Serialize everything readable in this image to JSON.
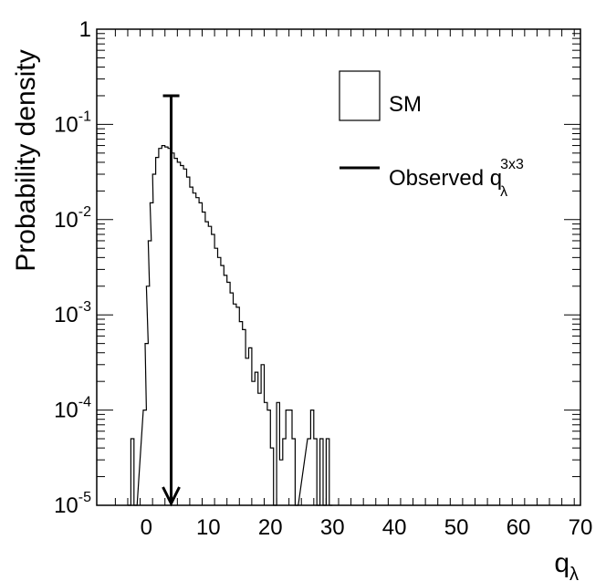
{
  "chart_data": {
    "type": "histogram",
    "title": "",
    "xlabel": "q",
    "xlabel_sub": "λ",
    "ylabel": "Probability density",
    "xlim": [
      -8,
      70
    ],
    "ylim": [
      1e-05,
      1
    ],
    "yscale": "log",
    "xticks": [
      0,
      10,
      20,
      30,
      40,
      50,
      60,
      70
    ],
    "xtick_labels": [
      "0",
      "10",
      "20",
      "30",
      "40",
      "50",
      "60",
      "70"
    ],
    "yticks": [
      {
        "value": 1e-05,
        "base": "10",
        "exp": "-5"
      },
      {
        "value": 0.0001,
        "base": "10",
        "exp": "-4"
      },
      {
        "value": 0.001,
        "base": "10",
        "exp": "-3"
      },
      {
        "value": 0.01,
        "base": "10",
        "exp": "-2"
      },
      {
        "value": 0.1,
        "base": "10",
        "exp": "-1"
      },
      {
        "value": 1,
        "base": "1",
        "exp": ""
      }
    ],
    "series": [
      {
        "name": "SM",
        "style": "step-histogram",
        "color": "#000000",
        "points": [
          [
            -3.0,
            1e-05
          ],
          [
            -2.5,
            5e-05
          ],
          [
            -2.0,
            1e-05
          ],
          [
            -0.5,
            0.0001
          ],
          [
            -0.2,
            0.0005
          ],
          [
            0.0,
            0.002
          ],
          [
            0.3,
            0.006
          ],
          [
            0.6,
            0.015
          ],
          [
            1.0,
            0.03
          ],
          [
            1.5,
            0.045
          ],
          [
            2.0,
            0.056
          ],
          [
            2.5,
            0.06
          ],
          [
            3.0,
            0.058
          ],
          [
            3.5,
            0.056
          ],
          [
            4.0,
            0.05
          ],
          [
            4.5,
            0.044
          ],
          [
            5.0,
            0.04
          ],
          [
            5.5,
            0.037
          ],
          [
            6.0,
            0.034
          ],
          [
            6.5,
            0.028
          ],
          [
            7.0,
            0.022
          ],
          [
            7.5,
            0.019
          ],
          [
            8.0,
            0.017
          ],
          [
            8.5,
            0.015
          ],
          [
            9.0,
            0.012
          ],
          [
            9.5,
            0.0095
          ],
          [
            10.0,
            0.0085
          ],
          [
            10.5,
            0.007
          ],
          [
            11.0,
            0.005
          ],
          [
            11.5,
            0.004
          ],
          [
            12.0,
            0.0033
          ],
          [
            12.5,
            0.0026
          ],
          [
            13.0,
            0.0022
          ],
          [
            13.5,
            0.0017
          ],
          [
            14.0,
            0.0013
          ],
          [
            14.5,
            0.0012
          ],
          [
            15.0,
            0.00085
          ],
          [
            15.5,
            0.0007
          ],
          [
            16.0,
            0.00035
          ],
          [
            16.5,
            0.00045
          ],
          [
            17.0,
            0.0002
          ],
          [
            17.5,
            0.00025
          ],
          [
            18.0,
            0.00015
          ],
          [
            18.5,
            0.0003
          ],
          [
            19.0,
            0.00012
          ],
          [
            19.5,
            0.0001
          ],
          [
            20.0,
            4e-05
          ],
          [
            20.5,
            1e-05
          ],
          [
            21.0,
            0.00012
          ],
          [
            21.5,
            3e-05
          ],
          [
            22.0,
            5e-05
          ],
          [
            22.5,
            0.0001
          ],
          [
            23.0,
            0.0001
          ],
          [
            23.5,
            5e-05
          ],
          [
            24.0,
            1e-05
          ],
          [
            26.0,
            5e-05
          ],
          [
            26.5,
            0.0001
          ],
          [
            27.0,
            5e-05
          ],
          [
            27.5,
            1e-05
          ],
          [
            28.0,
            5e-05
          ],
          [
            28.5,
            1e-05
          ],
          [
            29.0,
            5e-05
          ],
          [
            29.5,
            1e-05
          ]
        ]
      }
    ],
    "observed": {
      "name": "Observed",
      "value": 4.0,
      "top": 0.2,
      "arrow_to": 1e-05,
      "label_base": "Observed q",
      "label_sub": "λ",
      "label_sup": "3x3"
    },
    "legend": {
      "position": "top-right",
      "entries": [
        {
          "label": "SM",
          "marker": "box"
        },
        {
          "label": "Observed q",
          "marker": "line"
        }
      ]
    }
  }
}
